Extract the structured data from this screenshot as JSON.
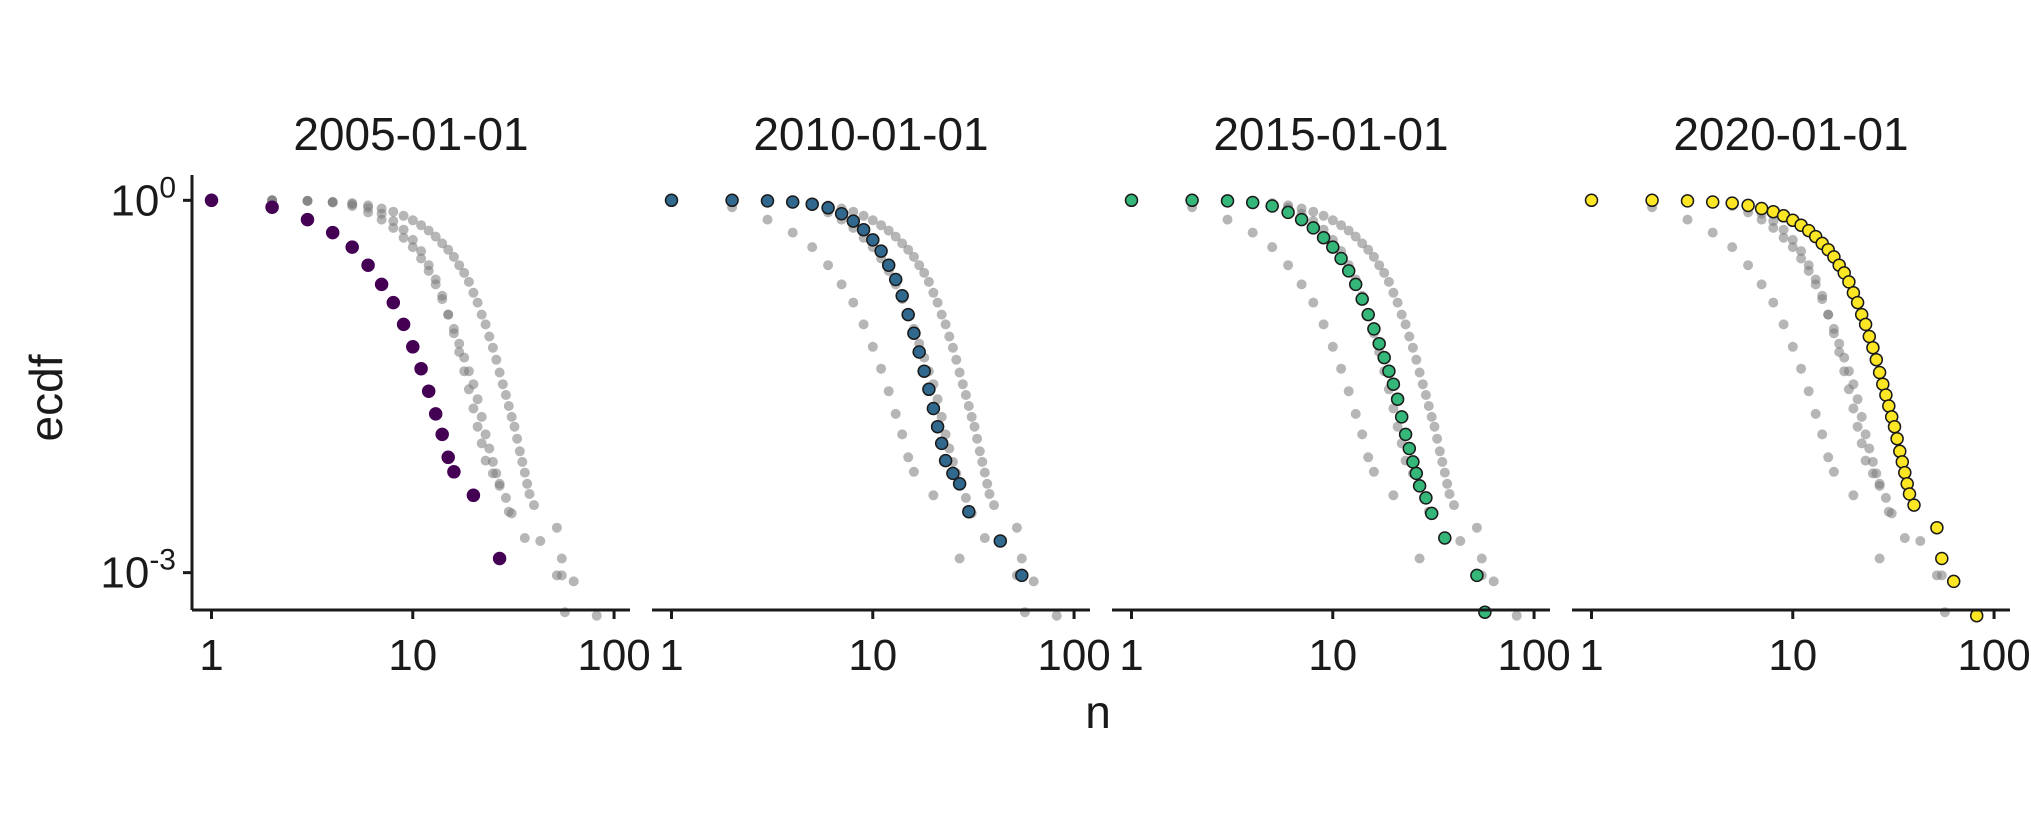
{
  "chart_data": {
    "type": "scatter",
    "xlabel": "n",
    "ylabel": "ecdf",
    "x_scale": "log10",
    "y_scale": "log10",
    "xlim": [
      0.8,
      120
    ],
    "ylim": [
      0.0005,
      1.6
    ],
    "x_ticks": [
      {
        "value": 1,
        "label": "1"
      },
      {
        "value": 10,
        "label": "10"
      },
      {
        "value": 100,
        "label": "100"
      }
    ],
    "y_ticks": [
      {
        "value": 1,
        "base": "10",
        "exp": "0"
      },
      {
        "value": 0.001,
        "base": "10",
        "exp": "-3"
      }
    ],
    "grid": false,
    "legend": "none",
    "background_points_color": "#7a7a7a",
    "panels": [
      {
        "title": "2005-01-01",
        "color": "#440154",
        "outline": "#440154",
        "x": [
          1,
          2,
          3,
          4,
          5,
          6,
          7,
          8,
          9,
          10,
          11,
          12,
          13,
          14,
          15,
          16,
          20,
          27
        ],
        "y": [
          1.0,
          0.88,
          0.7,
          0.55,
          0.42,
          0.3,
          0.21,
          0.15,
          0.1,
          0.066,
          0.044,
          0.029,
          0.019,
          0.013,
          0.0085,
          0.0065,
          0.0042,
          0.0013
        ]
      },
      {
        "title": "2010-01-01",
        "color": "#31688e",
        "outline": "#1a1a1a",
        "x": [
          1,
          2,
          3,
          4,
          5,
          6,
          7,
          8,
          9,
          10,
          11,
          12,
          13,
          14,
          15,
          16,
          17,
          18,
          19,
          20,
          21,
          22,
          23,
          25,
          27,
          30,
          43,
          55
        ],
        "y": [
          1.0,
          1.0,
          0.99,
          0.97,
          0.93,
          0.87,
          0.78,
          0.68,
          0.58,
          0.48,
          0.39,
          0.3,
          0.23,
          0.17,
          0.12,
          0.085,
          0.06,
          0.042,
          0.03,
          0.021,
          0.015,
          0.011,
          0.008,
          0.0063,
          0.0052,
          0.0031,
          0.0018,
          0.00095
        ]
      },
      {
        "title": "2015-01-01",
        "color": "#35b779",
        "outline": "#1a1a1a",
        "x": [
          1,
          2,
          3,
          4,
          5,
          6,
          7,
          8,
          9,
          10,
          11,
          12,
          13,
          14,
          15,
          16,
          17,
          18,
          19,
          20,
          21,
          22,
          23,
          24,
          25,
          26,
          27,
          29,
          31,
          36,
          52,
          57
        ],
        "y": [
          1.0,
          1.0,
          0.99,
          0.96,
          0.9,
          0.8,
          0.7,
          0.6,
          0.5,
          0.42,
          0.34,
          0.27,
          0.21,
          0.16,
          0.12,
          0.092,
          0.07,
          0.054,
          0.042,
          0.033,
          0.025,
          0.018,
          0.013,
          0.01,
          0.0078,
          0.0063,
          0.005,
          0.004,
          0.003,
          0.0019,
          0.00095,
          0.00048
        ]
      },
      {
        "title": "2020-01-01",
        "color": "#fde725",
        "outline": "#1a1a1a",
        "x": [
          1,
          2,
          3,
          4,
          5,
          6,
          7,
          8,
          9,
          10,
          11,
          12,
          13,
          14,
          15,
          16,
          17,
          18,
          19,
          20,
          21,
          22,
          23,
          24,
          25,
          26,
          27,
          28,
          29,
          30,
          31,
          32,
          33,
          34,
          35,
          36,
          37,
          38,
          40,
          52,
          55,
          63,
          82
        ],
        "y": [
          1.0,
          1.0,
          0.99,
          0.97,
          0.95,
          0.91,
          0.86,
          0.81,
          0.75,
          0.69,
          0.63,
          0.57,
          0.51,
          0.45,
          0.4,
          0.35,
          0.3,
          0.26,
          0.22,
          0.18,
          0.15,
          0.12,
          0.1,
          0.08,
          0.065,
          0.052,
          0.041,
          0.033,
          0.027,
          0.022,
          0.018,
          0.015,
          0.012,
          0.0095,
          0.0078,
          0.0064,
          0.0052,
          0.0043,
          0.0035,
          0.0023,
          0.0013,
          0.00085,
          0.00045
        ]
      }
    ]
  }
}
